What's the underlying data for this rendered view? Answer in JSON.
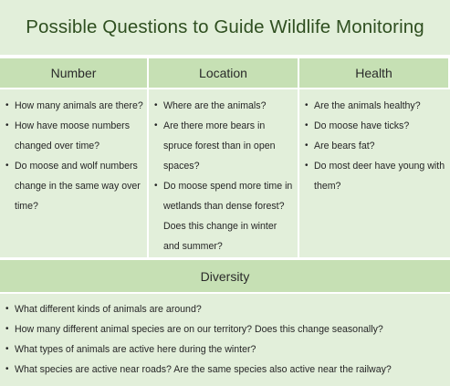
{
  "title": "Possible Questions to Guide Wildlife Monitoring",
  "columns": [
    {
      "header": "Number",
      "items": [
        "How many animals are there?",
        "How have moose numbers changed over time?",
        "Do moose and wolf numbers change in the same way over time?"
      ]
    },
    {
      "header": "Location",
      "items": [
        "Where are the animals?",
        "Are there more bears in spruce forest than in open spaces?",
        "Do moose spend more time in wetlands than dense forest? Does this change in winter and summer?"
      ]
    },
    {
      "header": "Health",
      "items": [
        "Are the animals healthy?",
        "Do moose have ticks?",
        "Are bears fat?",
        "Do most deer have young with them?"
      ]
    }
  ],
  "diversity": {
    "header": "Diversity",
    "items": [
      "What different kinds of animals are around?",
      "How many different animal species are on our territory? Does this change seasonally?",
      "What types of animals are active here during the winter?",
      "What species are active near roads? Are the same species also active near the railway?"
    ]
  }
}
